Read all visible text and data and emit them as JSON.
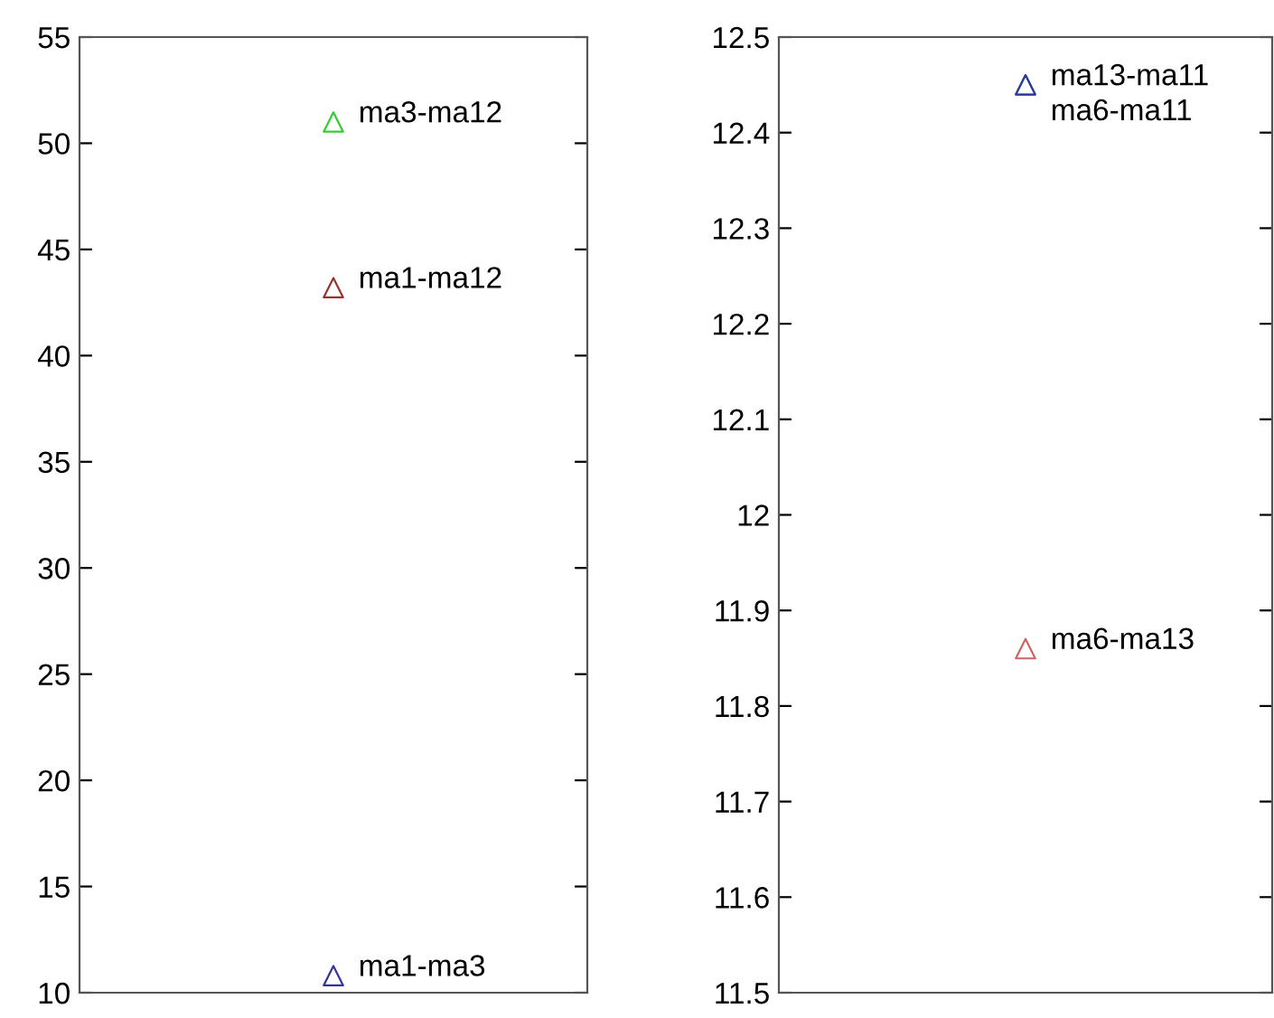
{
  "chart_data": [
    {
      "type": "scatter",
      "categories": [
        null
      ],
      "marker": "triangle",
      "ylim": [
        10,
        55
      ],
      "yticks": [
        10,
        15,
        20,
        25,
        30,
        35,
        40,
        45,
        50,
        55
      ],
      "grid": false,
      "legend": false,
      "series": [
        {
          "name": "ma3-ma12",
          "color": "#33cc33",
          "values": [
            51
          ]
        },
        {
          "name": "ma1-ma12",
          "color": "#993333",
          "values": [
            43.2
          ]
        },
        {
          "name": "ma1-ma3",
          "color": "#333399",
          "values": [
            10.8
          ]
        }
      ]
    },
    {
      "type": "scatter",
      "categories": [
        null
      ],
      "marker": "triangle",
      "ylim": [
        11.5,
        12.5
      ],
      "yticks": [
        11.5,
        11.6,
        11.7,
        11.8,
        11.9,
        {
          "value": 12,
          "label": "12"
        },
        12.1,
        12.2,
        12.3,
        12.4,
        12.5
      ],
      "grid": false,
      "legend": false,
      "series": [
        {
          "name": "ma13-ma11",
          "color": "#33cc99",
          "values": [
            12.45
          ]
        },
        {
          "name": "ma6-ma11",
          "color": "#333399",
          "values": [
            12.45
          ]
        },
        {
          "name": "ma6-ma13",
          "color": "#cc6666",
          "values": [
            11.86
          ]
        }
      ]
    }
  ]
}
